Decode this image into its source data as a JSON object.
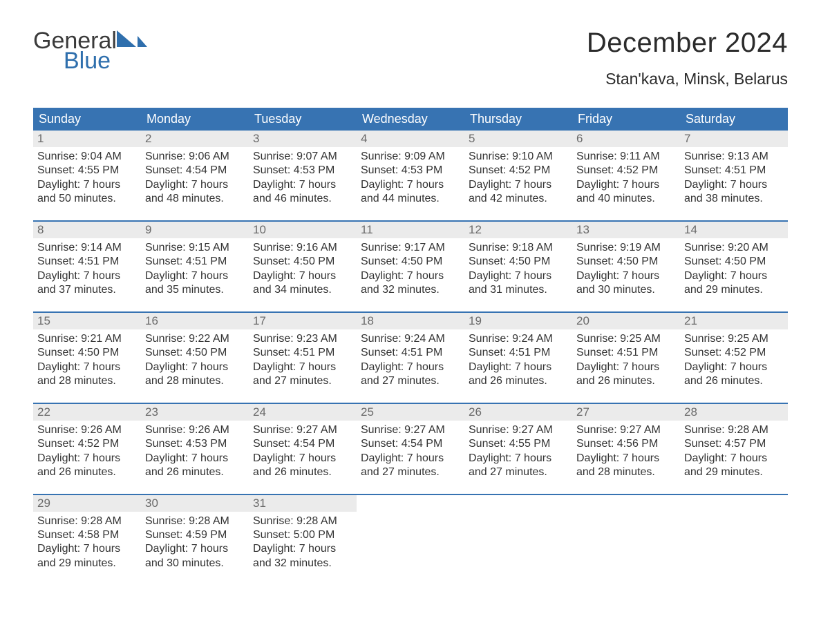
{
  "logo": {
    "word1": "General",
    "word2": "Blue",
    "accent_color": "#2f6fad",
    "text_color": "#3a3a3a"
  },
  "header": {
    "title": "December 2024",
    "location": "Stan'kava, Minsk, Belarus",
    "title_fontsize": 40,
    "location_fontsize": 23,
    "text_color": "#2b2b2b"
  },
  "calendar": {
    "type": "table",
    "header_bg": "#3773b2",
    "header_text_color": "#ffffff",
    "row_divider_color": "#3773b2",
    "daynum_bg": "#ebebeb",
    "daynum_color": "#6a6a6a",
    "body_text_color": "#333333",
    "body_fontsize": 16,
    "weekdays": [
      "Sunday",
      "Monday",
      "Tuesday",
      "Wednesday",
      "Thursday",
      "Friday",
      "Saturday"
    ],
    "weeks": [
      [
        {
          "day": "1",
          "sunrise": "Sunrise: 9:04 AM",
          "sunset": "Sunset: 4:55 PM",
          "day1": "Daylight: 7 hours",
          "day2": "and 50 minutes."
        },
        {
          "day": "2",
          "sunrise": "Sunrise: 9:06 AM",
          "sunset": "Sunset: 4:54 PM",
          "day1": "Daylight: 7 hours",
          "day2": "and 48 minutes."
        },
        {
          "day": "3",
          "sunrise": "Sunrise: 9:07 AM",
          "sunset": "Sunset: 4:53 PM",
          "day1": "Daylight: 7 hours",
          "day2": "and 46 minutes."
        },
        {
          "day": "4",
          "sunrise": "Sunrise: 9:09 AM",
          "sunset": "Sunset: 4:53 PM",
          "day1": "Daylight: 7 hours",
          "day2": "and 44 minutes."
        },
        {
          "day": "5",
          "sunrise": "Sunrise: 9:10 AM",
          "sunset": "Sunset: 4:52 PM",
          "day1": "Daylight: 7 hours",
          "day2": "and 42 minutes."
        },
        {
          "day": "6",
          "sunrise": "Sunrise: 9:11 AM",
          "sunset": "Sunset: 4:52 PM",
          "day1": "Daylight: 7 hours",
          "day2": "and 40 minutes."
        },
        {
          "day": "7",
          "sunrise": "Sunrise: 9:13 AM",
          "sunset": "Sunset: 4:51 PM",
          "day1": "Daylight: 7 hours",
          "day2": "and 38 minutes."
        }
      ],
      [
        {
          "day": "8",
          "sunrise": "Sunrise: 9:14 AM",
          "sunset": "Sunset: 4:51 PM",
          "day1": "Daylight: 7 hours",
          "day2": "and 37 minutes."
        },
        {
          "day": "9",
          "sunrise": "Sunrise: 9:15 AM",
          "sunset": "Sunset: 4:51 PM",
          "day1": "Daylight: 7 hours",
          "day2": "and 35 minutes."
        },
        {
          "day": "10",
          "sunrise": "Sunrise: 9:16 AM",
          "sunset": "Sunset: 4:50 PM",
          "day1": "Daylight: 7 hours",
          "day2": "and 34 minutes."
        },
        {
          "day": "11",
          "sunrise": "Sunrise: 9:17 AM",
          "sunset": "Sunset: 4:50 PM",
          "day1": "Daylight: 7 hours",
          "day2": "and 32 minutes."
        },
        {
          "day": "12",
          "sunrise": "Sunrise: 9:18 AM",
          "sunset": "Sunset: 4:50 PM",
          "day1": "Daylight: 7 hours",
          "day2": "and 31 minutes."
        },
        {
          "day": "13",
          "sunrise": "Sunrise: 9:19 AM",
          "sunset": "Sunset: 4:50 PM",
          "day1": "Daylight: 7 hours",
          "day2": "and 30 minutes."
        },
        {
          "day": "14",
          "sunrise": "Sunrise: 9:20 AM",
          "sunset": "Sunset: 4:50 PM",
          "day1": "Daylight: 7 hours",
          "day2": "and 29 minutes."
        }
      ],
      [
        {
          "day": "15",
          "sunrise": "Sunrise: 9:21 AM",
          "sunset": "Sunset: 4:50 PM",
          "day1": "Daylight: 7 hours",
          "day2": "and 28 minutes."
        },
        {
          "day": "16",
          "sunrise": "Sunrise: 9:22 AM",
          "sunset": "Sunset: 4:50 PM",
          "day1": "Daylight: 7 hours",
          "day2": "and 28 minutes."
        },
        {
          "day": "17",
          "sunrise": "Sunrise: 9:23 AM",
          "sunset": "Sunset: 4:51 PM",
          "day1": "Daylight: 7 hours",
          "day2": "and 27 minutes."
        },
        {
          "day": "18",
          "sunrise": "Sunrise: 9:24 AM",
          "sunset": "Sunset: 4:51 PM",
          "day1": "Daylight: 7 hours",
          "day2": "and 27 minutes."
        },
        {
          "day": "19",
          "sunrise": "Sunrise: 9:24 AM",
          "sunset": "Sunset: 4:51 PM",
          "day1": "Daylight: 7 hours",
          "day2": "and 26 minutes."
        },
        {
          "day": "20",
          "sunrise": "Sunrise: 9:25 AM",
          "sunset": "Sunset: 4:51 PM",
          "day1": "Daylight: 7 hours",
          "day2": "and 26 minutes."
        },
        {
          "day": "21",
          "sunrise": "Sunrise: 9:25 AM",
          "sunset": "Sunset: 4:52 PM",
          "day1": "Daylight: 7 hours",
          "day2": "and 26 minutes."
        }
      ],
      [
        {
          "day": "22",
          "sunrise": "Sunrise: 9:26 AM",
          "sunset": "Sunset: 4:52 PM",
          "day1": "Daylight: 7 hours",
          "day2": "and 26 minutes."
        },
        {
          "day": "23",
          "sunrise": "Sunrise: 9:26 AM",
          "sunset": "Sunset: 4:53 PM",
          "day1": "Daylight: 7 hours",
          "day2": "and 26 minutes."
        },
        {
          "day": "24",
          "sunrise": "Sunrise: 9:27 AM",
          "sunset": "Sunset: 4:54 PM",
          "day1": "Daylight: 7 hours",
          "day2": "and 26 minutes."
        },
        {
          "day": "25",
          "sunrise": "Sunrise: 9:27 AM",
          "sunset": "Sunset: 4:54 PM",
          "day1": "Daylight: 7 hours",
          "day2": "and 27 minutes."
        },
        {
          "day": "26",
          "sunrise": "Sunrise: 9:27 AM",
          "sunset": "Sunset: 4:55 PM",
          "day1": "Daylight: 7 hours",
          "day2": "and 27 minutes."
        },
        {
          "day": "27",
          "sunrise": "Sunrise: 9:27 AM",
          "sunset": "Sunset: 4:56 PM",
          "day1": "Daylight: 7 hours",
          "day2": "and 28 minutes."
        },
        {
          "day": "28",
          "sunrise": "Sunrise: 9:28 AM",
          "sunset": "Sunset: 4:57 PM",
          "day1": "Daylight: 7 hours",
          "day2": "and 29 minutes."
        }
      ],
      [
        {
          "day": "29",
          "sunrise": "Sunrise: 9:28 AM",
          "sunset": "Sunset: 4:58 PM",
          "day1": "Daylight: 7 hours",
          "day2": "and 29 minutes."
        },
        {
          "day": "30",
          "sunrise": "Sunrise: 9:28 AM",
          "sunset": "Sunset: 4:59 PM",
          "day1": "Daylight: 7 hours",
          "day2": "and 30 minutes."
        },
        {
          "day": "31",
          "sunrise": "Sunrise: 9:28 AM",
          "sunset": "Sunset: 5:00 PM",
          "day1": "Daylight: 7 hours",
          "day2": "and 32 minutes."
        },
        null,
        null,
        null,
        null
      ]
    ]
  }
}
